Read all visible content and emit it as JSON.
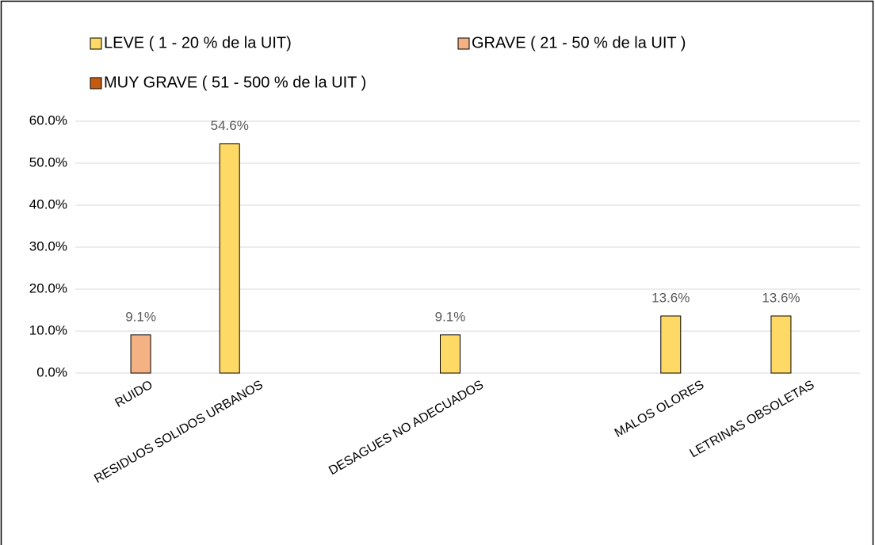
{
  "chart_data": {
    "type": "bar",
    "categories": [
      "RUIDO",
      "RESIDUOS SOLIDOS URBANOS",
      null,
      "DESAGUES NO ADECUADOS",
      null,
      "MALOS OLORES",
      "LETRINAS OBSOLETAS"
    ],
    "series": [
      {
        "name": "LEVE ( 1 - 20 % de la UIT)",
        "color": "#ffd966",
        "values": [
          null,
          54.6,
          null,
          9.1,
          null,
          13.6,
          13.6
        ],
        "value_labels": [
          null,
          "54.6%",
          null,
          "9.1%",
          null,
          "13.6%",
          "13.6%"
        ]
      },
      {
        "name": "GRAVE ( 21 - 50 % de la UIT )",
        "color": "#f4b183",
        "values": [
          9.1,
          null,
          null,
          null,
          null,
          null,
          null
        ],
        "value_labels": [
          "9.1%",
          null,
          null,
          null,
          null,
          null,
          null
        ]
      },
      {
        "name": "MUY GRAVE ( 51 - 500 % de la UIT )",
        "color": "#c55a11",
        "values": [
          null,
          null,
          null,
          null,
          null,
          null,
          null
        ]
      }
    ],
    "ylim": [
      0,
      60
    ],
    "yticks": [
      {
        "value": 0,
        "label": "0.0%"
      },
      {
        "value": 10,
        "label": "10.0%"
      },
      {
        "value": 20,
        "label": "20.0%"
      },
      {
        "value": 30,
        "label": "30.0%"
      },
      {
        "value": 40,
        "label": "40.0%"
      },
      {
        "value": 50,
        "label": "50.0%"
      },
      {
        "value": 60,
        "label": "60.0%"
      }
    ],
    "grid": true,
    "legend": "top"
  }
}
